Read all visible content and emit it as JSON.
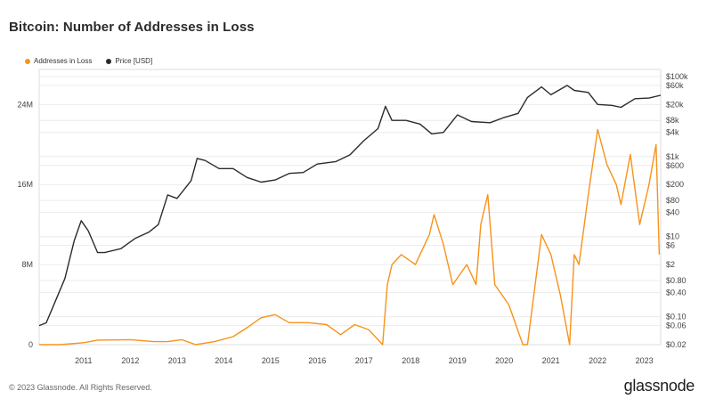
{
  "page": {
    "title": "Bitcoin: Number of Addresses in Loss",
    "footer": "© 2023 Glassnode. All Rights Reserved.",
    "brand": "glassnode"
  },
  "colors": {
    "loss": "#f7931a",
    "price": "#2b2b2b",
    "grid": "#ececec"
  },
  "chart_data": {
    "type": "line",
    "title": "Bitcoin: Number of Addresses in Loss",
    "legend_position": "top-left",
    "grid": true,
    "x_ticks": [
      "2011",
      "2012",
      "2013",
      "2014",
      "2015",
      "2016",
      "2017",
      "2018",
      "2019",
      "2020",
      "2021",
      "2022",
      "2023"
    ],
    "x_range": [
      2010.55,
      2023.85
    ],
    "y_left": {
      "ticks": [
        "0",
        "8M",
        "16M",
        "24M"
      ],
      "values": [
        0,
        8000000,
        16000000,
        24000000
      ],
      "range": [
        0,
        27500000
      ]
    },
    "y_right": {
      "scale": "log",
      "ticks": [
        "$100k",
        "$60k",
        "$20k",
        "$8k",
        "$4k",
        "$1k",
        "$600",
        "$200",
        "$80",
        "$40",
        "$10",
        "$6",
        "$2",
        "$0.80",
        "$0.40",
        "$0.10",
        "$0.06",
        "$0.02"
      ],
      "values": [
        100000,
        60000,
        20000,
        8000,
        4000,
        1000,
        600,
        200,
        80,
        40,
        10,
        6,
        2,
        0.8,
        0.4,
        0.1,
        0.06,
        0.02
      ],
      "range": [
        0.02,
        150000
      ]
    },
    "series": [
      {
        "name": "Addresses in Loss",
        "axis": "left",
        "color": "#f7931a",
        "x": [
          2010.55,
          2011.0,
          2011.5,
          2011.8,
          2012.5,
          2013.0,
          2013.3,
          2013.6,
          2013.9,
          2014.3,
          2014.7,
          2015.0,
          2015.3,
          2015.6,
          2015.9,
          2016.3,
          2016.7,
          2017.0,
          2017.3,
          2017.6,
          2017.9,
          2018.0,
          2018.1,
          2018.3,
          2018.6,
          2018.9,
          2019.0,
          2019.2,
          2019.4,
          2019.7,
          2019.9,
          2020.0,
          2020.15,
          2020.3,
          2020.6,
          2020.9,
          2021.0,
          2021.3,
          2021.5,
          2021.7,
          2021.9,
          2022.0,
          2022.1,
          2022.3,
          2022.5,
          2022.7,
          2022.9,
          2023.0,
          2023.2,
          2023.4,
          2023.6,
          2023.75,
          2023.82
        ],
        "y": [
          0,
          0,
          200000,
          450000,
          500000,
          300000,
          300000,
          500000,
          0,
          300000,
          800000,
          1700000,
          2700000,
          3000000,
          2200000,
          2200000,
          2000000,
          1000000,
          2000000,
          1500000,
          0,
          6000000,
          8000000,
          9000000,
          8000000,
          11000000,
          13000000,
          10000000,
          6000000,
          8000000,
          6000000,
          12000000,
          15000000,
          6000000,
          4000000,
          0,
          0,
          11000000,
          9000000,
          5000000,
          0,
          9000000,
          8000000,
          15000000,
          21500000,
          18000000,
          16000000,
          14000000,
          19000000,
          12000000,
          16000000,
          20000000,
          9000000
        ]
      },
      {
        "name": "Price [USD]",
        "axis": "right",
        "color": "#2b2b2b",
        "x": [
          2010.55,
          2010.7,
          2010.9,
          2011.1,
          2011.3,
          2011.45,
          2011.6,
          2011.8,
          2011.95,
          2012.3,
          2012.6,
          2012.9,
          2013.1,
          2013.3,
          2013.5,
          2013.8,
          2013.93,
          2014.1,
          2014.4,
          2014.7,
          2015.0,
          2015.3,
          2015.6,
          2015.9,
          2016.2,
          2016.5,
          2016.9,
          2017.2,
          2017.5,
          2017.8,
          2017.96,
          2018.1,
          2018.4,
          2018.7,
          2018.95,
          2019.2,
          2019.5,
          2019.8,
          2020.2,
          2020.5,
          2020.8,
          2021.0,
          2021.3,
          2021.5,
          2021.85,
          2022.0,
          2022.3,
          2022.5,
          2022.8,
          2023.0,
          2023.3,
          2023.6,
          2023.85
        ],
        "y": [
          0.06,
          0.07,
          0.25,
          0.9,
          8,
          25,
          14,
          4,
          4,
          5,
          9,
          13,
          20,
          110,
          90,
          250,
          900,
          800,
          500,
          500,
          300,
          230,
          260,
          380,
          400,
          650,
          750,
          1100,
          2500,
          5000,
          18000,
          8000,
          8000,
          6500,
          3700,
          4000,
          11000,
          7500,
          7000,
          9500,
          12000,
          30000,
          55000,
          35000,
          60000,
          45000,
          40000,
          20000,
          19000,
          17000,
          28000,
          29000,
          34000
        ]
      }
    ]
  }
}
